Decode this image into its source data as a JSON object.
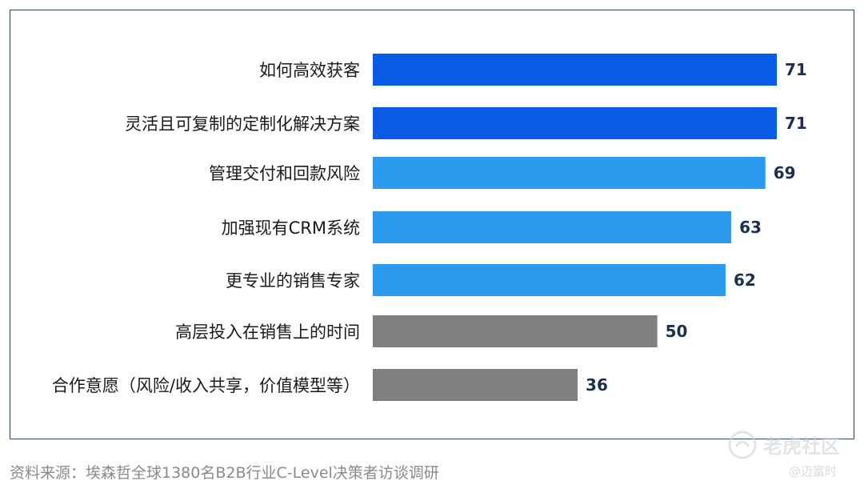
{
  "chart_data": {
    "type": "bar",
    "orientation": "horizontal",
    "categories": [
      "如何高效获客",
      "灵活且可复制的定制化解决方案",
      "管理交付和回款风险",
      "加强现有CRM系统",
      "更专业的销售专家",
      "高层投入在销售上的时间",
      "合作意愿（风险/收入共享，价值模型等）"
    ],
    "values": [
      71,
      71,
      69,
      63,
      62,
      50,
      36
    ],
    "colors": [
      "#0a5ce6",
      "#0a5ce6",
      "#2c9bef",
      "#2c9bef",
      "#2c9bef",
      "#808080",
      "#808080"
    ],
    "xlim": [
      0,
      71
    ],
    "grid": false,
    "legend": "none",
    "title": "",
    "xlabel": "",
    "ylabel": ""
  },
  "source_text": "资料来源：埃森哲全球1380名B2B行业C-Level决策者访谈调研",
  "watermark": {
    "main": "老虎社区",
    "sub": "@迈富时"
  }
}
